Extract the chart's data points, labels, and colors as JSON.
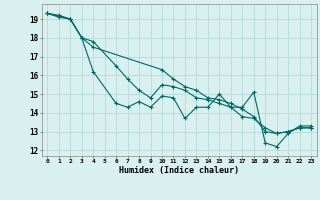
{
  "xlabel": "Humidex (Indice chaleur)",
  "bg_color": "#d9f0f0",
  "line_color": "#006666",
  "grid_color": "#b8dada",
  "xlim": [
    -0.5,
    23.5
  ],
  "ylim": [
    11.7,
    19.8
  ],
  "xticks": [
    0,
    1,
    2,
    3,
    4,
    5,
    6,
    7,
    8,
    9,
    10,
    11,
    12,
    13,
    14,
    15,
    16,
    17,
    18,
    19,
    20,
    21,
    22,
    23
  ],
  "yticks": [
    12,
    13,
    14,
    15,
    16,
    17,
    18,
    19
  ],
  "series1": {
    "x": [
      0,
      1,
      2,
      3,
      4,
      6,
      7,
      8,
      9,
      10,
      11,
      12,
      13,
      14,
      15,
      16,
      17,
      18,
      19,
      20,
      21,
      22,
      23
    ],
    "y": [
      19.3,
      19.1,
      19.0,
      18.0,
      16.2,
      14.5,
      14.3,
      14.6,
      14.3,
      14.9,
      14.8,
      13.7,
      14.3,
      14.3,
      15.0,
      14.3,
      14.3,
      15.1,
      12.4,
      12.2,
      12.9,
      13.3,
      13.3
    ]
  },
  "series2": {
    "x": [
      0,
      2,
      3,
      4,
      10,
      11,
      12,
      13,
      14,
      15,
      16,
      17,
      18,
      19,
      20,
      21,
      22,
      23
    ],
    "y": [
      19.3,
      19.0,
      18.0,
      17.5,
      16.3,
      15.8,
      15.4,
      15.2,
      14.8,
      14.7,
      14.5,
      14.2,
      13.8,
      13.0,
      12.9,
      13.0,
      13.2,
      13.2
    ]
  },
  "series3": {
    "x": [
      0,
      1,
      2,
      3,
      4,
      6,
      7,
      8,
      9,
      10,
      11,
      12,
      13,
      14,
      15,
      16,
      17,
      18,
      19,
      20,
      21,
      22,
      23
    ],
    "y": [
      19.3,
      19.2,
      19.0,
      18.0,
      17.8,
      16.5,
      15.8,
      15.2,
      14.8,
      15.5,
      15.4,
      15.2,
      14.8,
      14.7,
      14.5,
      14.3,
      13.8,
      13.7,
      13.2,
      12.9,
      13.0,
      13.2,
      13.2
    ]
  }
}
